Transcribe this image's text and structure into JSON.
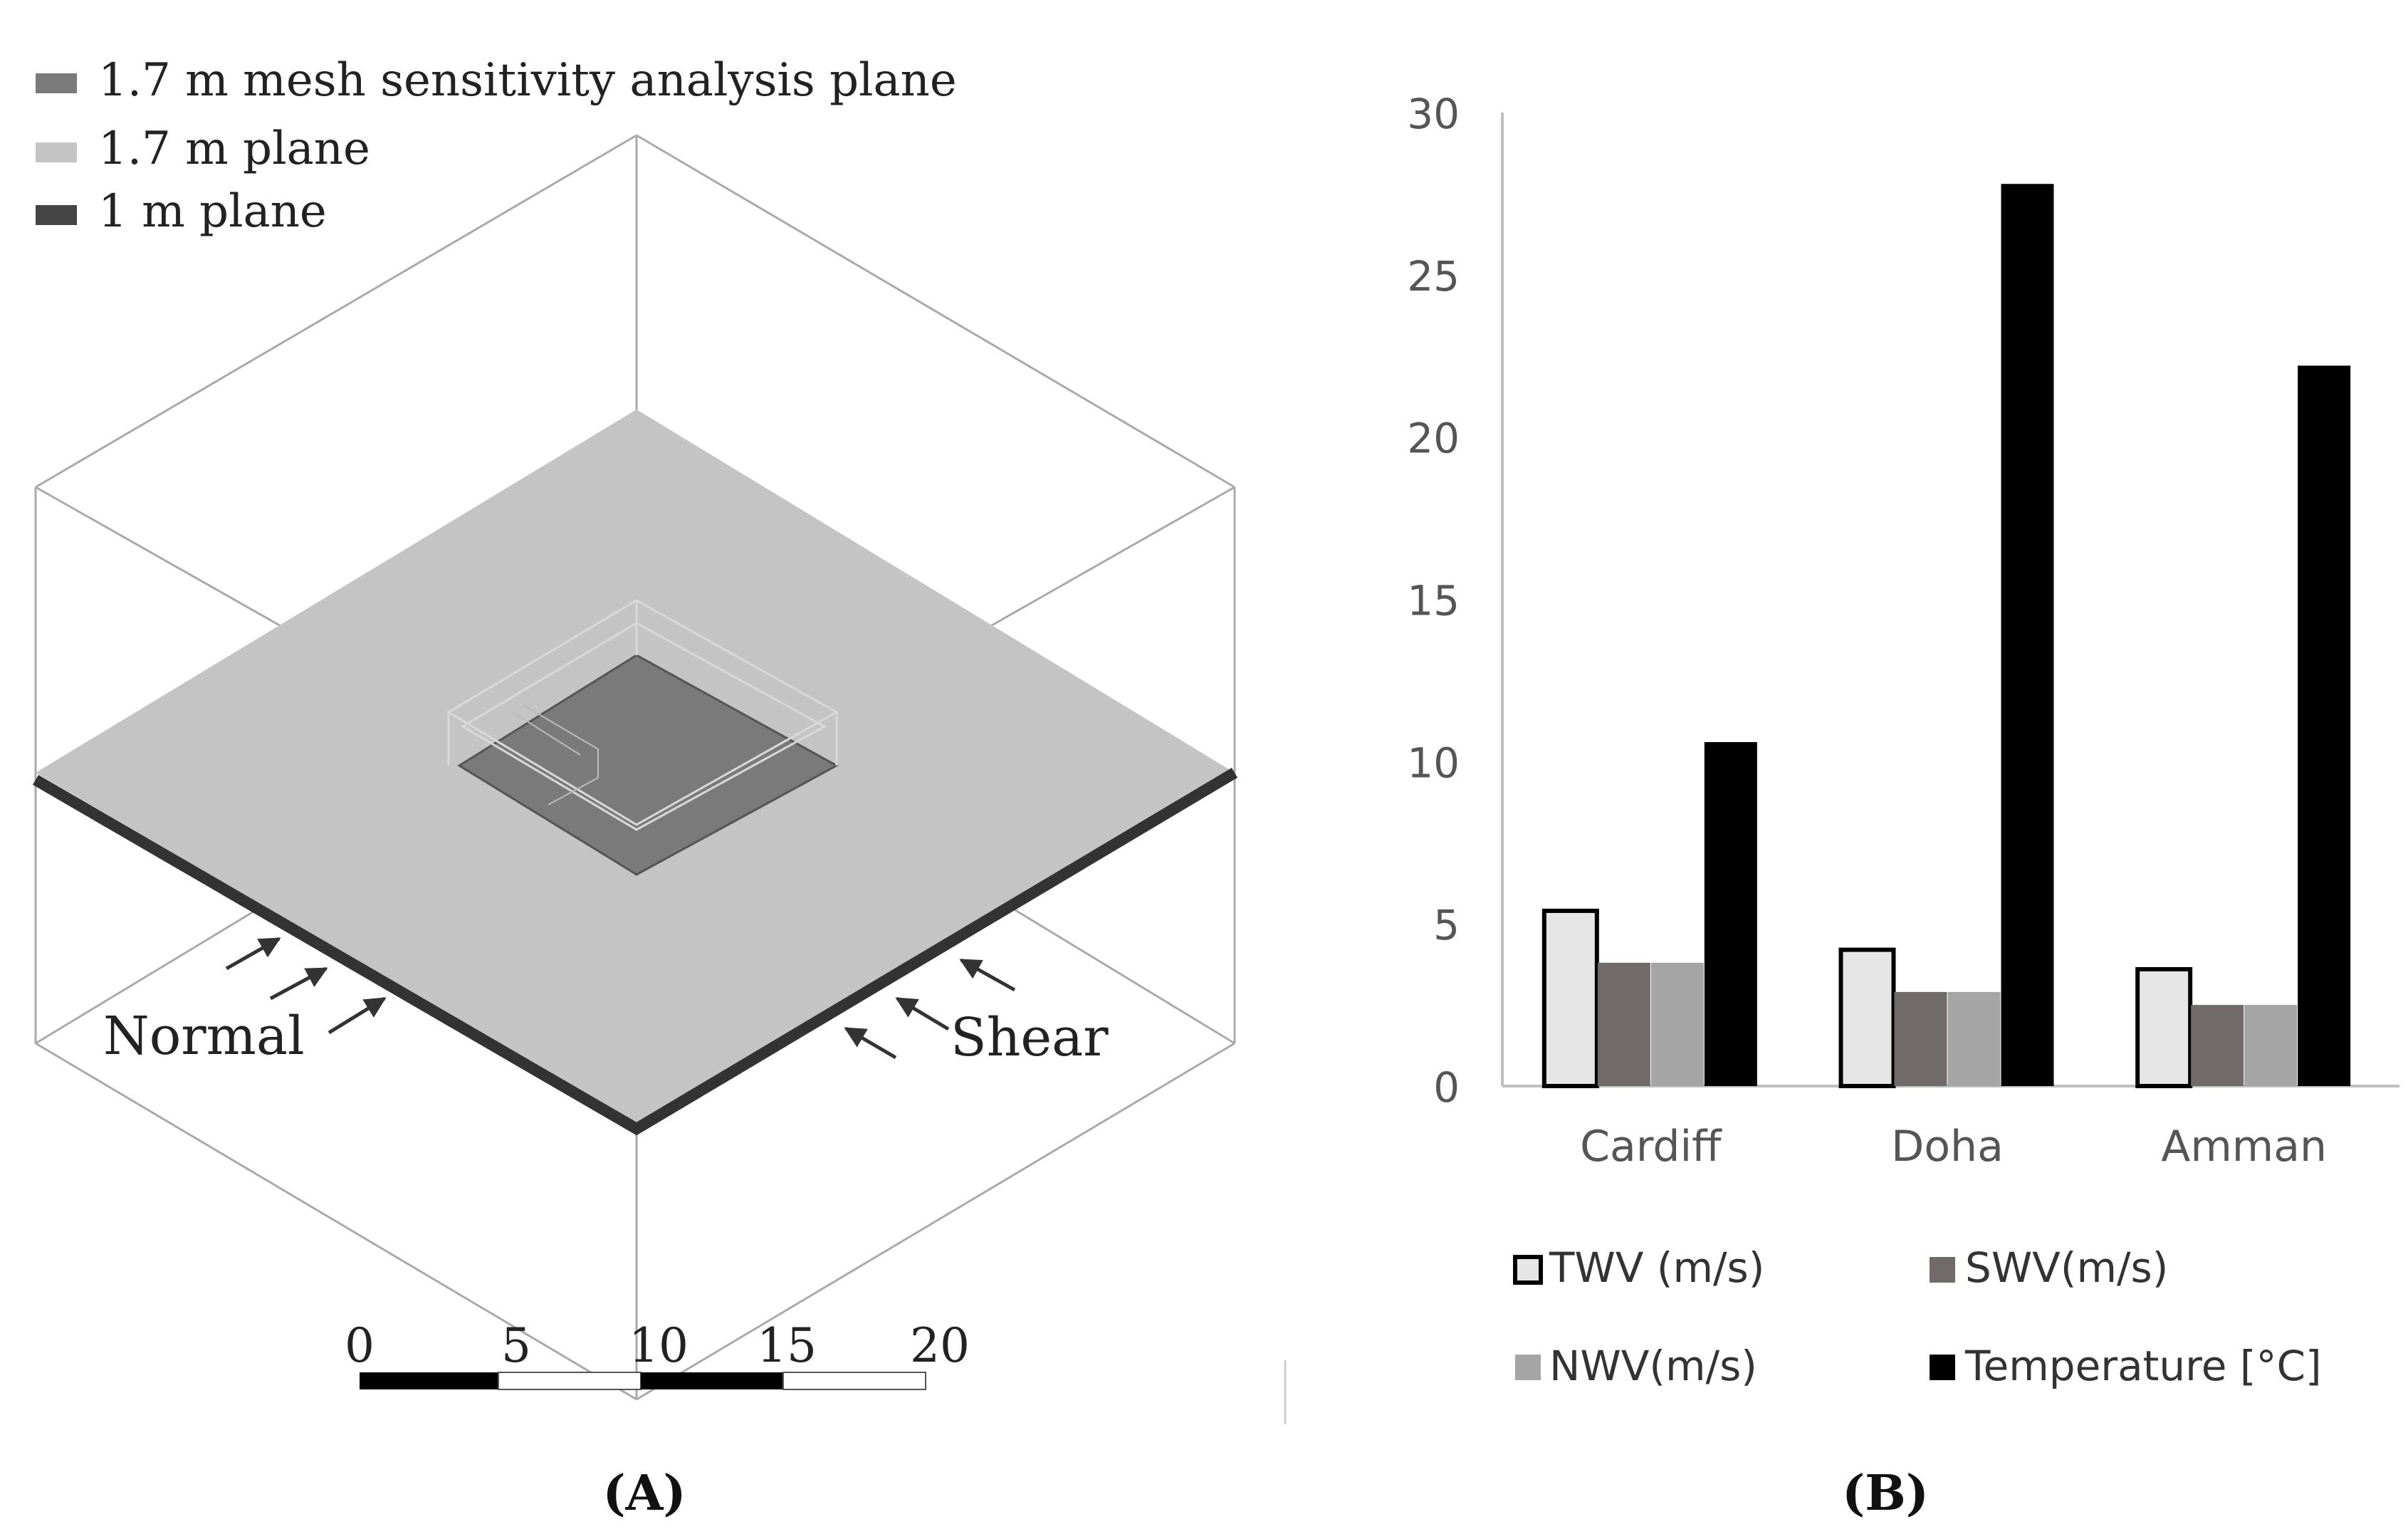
{
  "panel_a": {
    "legend": [
      {
        "label": "1.7 m mesh sensitivity analysis plane",
        "color": "#7a7a7a"
      },
      {
        "label": "1.7 m plane",
        "color": "#c4c4c4"
      },
      {
        "label": "1 m plane",
        "color": "#444444"
      }
    ],
    "labels": {
      "normal": "Normal",
      "shear": "Shear"
    },
    "scale_ticks": [
      "0",
      "5",
      "10",
      "15",
      "20"
    ],
    "caption": "(A)"
  },
  "chart_data": {
    "type": "bar",
    "categories": [
      "Cardiff",
      "Doha",
      "Amman"
    ],
    "series": [
      {
        "name": "TWV (m/s)",
        "values": [
          5.4,
          4.2,
          3.6
        ],
        "color": "#e6e6e6"
      },
      {
        "name": "SWV(m/s)",
        "values": [
          3.8,
          2.9,
          2.5
        ],
        "color": "#706a6a"
      },
      {
        "name": "NWV(m/s)",
        "values": [
          3.8,
          2.9,
          2.5
        ],
        "color": "#a5a5a5"
      },
      {
        "name": "Temperature [°C]",
        "values": [
          10.6,
          27.8,
          22.2
        ],
        "color": "#000000"
      }
    ],
    "yticks": [
      "0",
      "5",
      "10",
      "15",
      "20",
      "25",
      "30"
    ],
    "ylim": [
      0,
      30
    ],
    "title": "",
    "xlabel": "",
    "ylabel": "",
    "legend_position": "bottom",
    "caption": "(B)"
  }
}
